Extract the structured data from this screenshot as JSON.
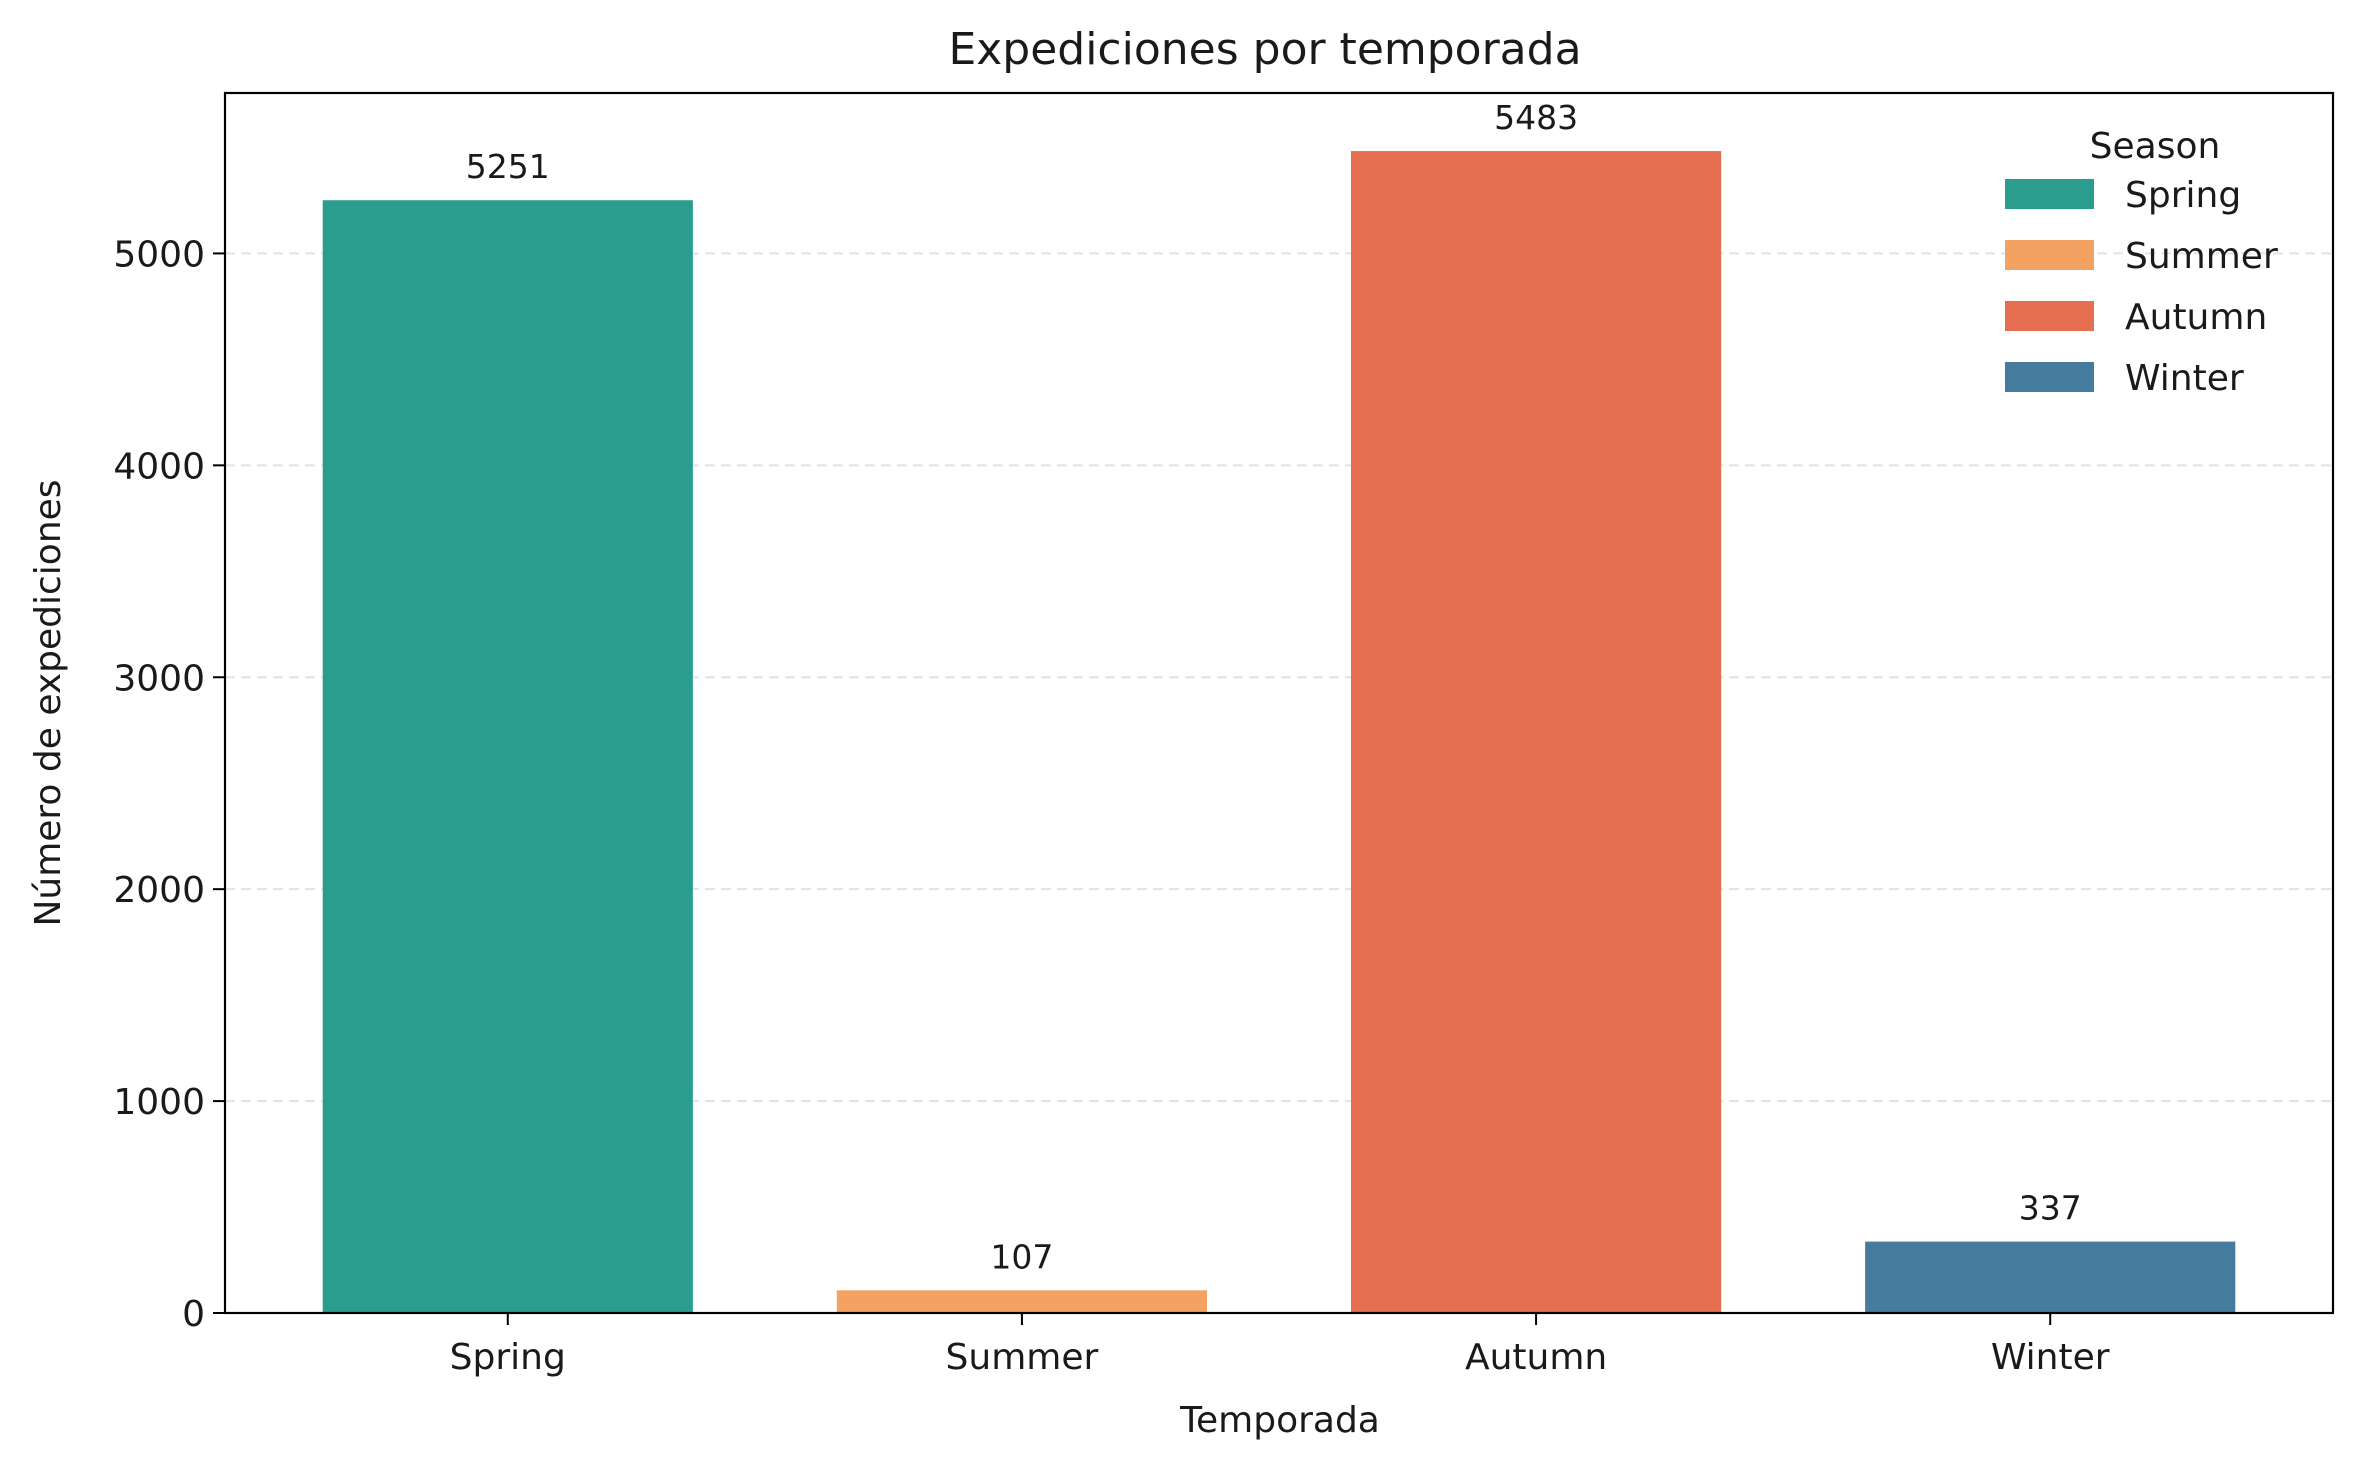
{
  "chart_data": {
    "type": "bar",
    "title": "Expediciones por temporada",
    "xlabel": "Temporada",
    "ylabel": "Número de expediciones",
    "categories": [
      "Spring",
      "Summer",
      "Autumn",
      "Winter"
    ],
    "values": [
      5251,
      107,
      5483,
      337
    ],
    "data_labels": [
      "5251",
      "107",
      "5483",
      "337"
    ],
    "colors": [
      "#2a9d8f",
      "#f4a261",
      "#e76f51",
      "#457b9d"
    ],
    "ylim": [
      0,
      5757
    ],
    "yticks": [
      0,
      1000,
      2000,
      3000,
      4000,
      5000
    ],
    "ytick_labels": [
      "0",
      "1000",
      "2000",
      "3000",
      "4000",
      "5000"
    ],
    "grid": "y-dashed",
    "legend": {
      "title": "Season",
      "placement": "top-right",
      "entries": [
        "Spring",
        "Summer",
        "Autumn",
        "Winter"
      ]
    }
  }
}
